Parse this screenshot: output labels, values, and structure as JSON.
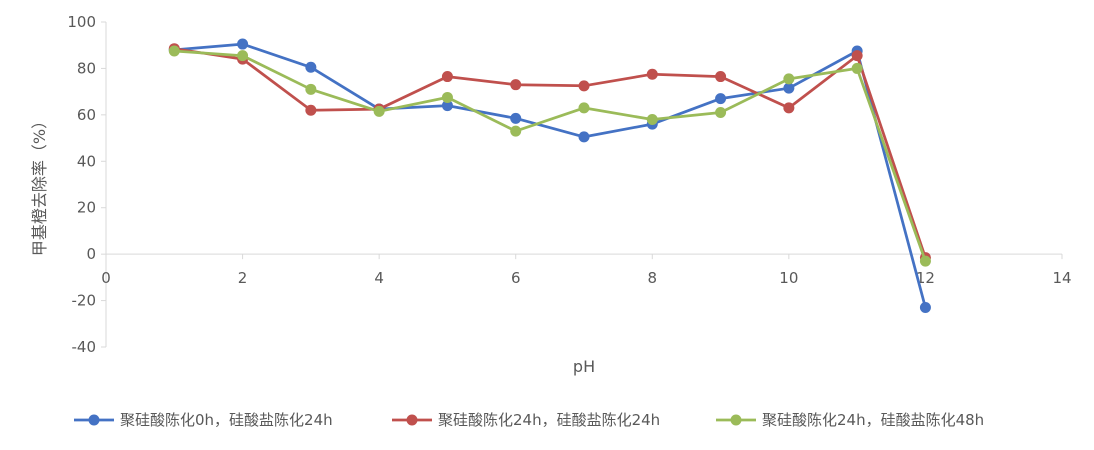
{
  "chart_data": {
    "type": "line",
    "xlabel": "pH",
    "ylabel": "甲基橙去除率（%）",
    "xlim": [
      0,
      14
    ],
    "ylim": [
      -40,
      100
    ],
    "x_ticks": [
      0,
      2,
      4,
      6,
      8,
      10,
      12,
      14
    ],
    "y_ticks": [
      -40,
      -20,
      0,
      20,
      40,
      60,
      80,
      100
    ],
    "grid": false,
    "legend_position": "bottom",
    "series": [
      {
        "name": "聚硅酸陈化0h，硅酸盐陈化24h",
        "color": "#4472C4",
        "x": [
          1,
          2,
          3,
          4,
          5,
          6,
          7,
          8,
          9,
          10,
          11,
          12
        ],
        "y": [
          88,
          90.5,
          80.5,
          62.5,
          64,
          58.5,
          50.5,
          56,
          67,
          71.5,
          87.5,
          -23
        ]
      },
      {
        "name": "聚硅酸陈化24h，硅酸盐陈化24h",
        "color": "#C0504D",
        "x": [
          1,
          2,
          3,
          4,
          5,
          6,
          7,
          8,
          9,
          10,
          11,
          12
        ],
        "y": [
          88.5,
          84,
          62,
          62.5,
          76.5,
          73,
          72.5,
          77.5,
          76.5,
          63,
          85.5,
          -1.5
        ]
      },
      {
        "name": "聚硅酸陈化24h，硅酸盐陈化48h",
        "color": "#9BBB59",
        "x": [
          1,
          2,
          3,
          4,
          5,
          6,
          7,
          8,
          9,
          10,
          11,
          12
        ],
        "y": [
          87.5,
          85.5,
          71,
          61.5,
          67.5,
          53,
          63,
          58,
          61,
          75.5,
          80,
          -3
        ]
      }
    ]
  }
}
